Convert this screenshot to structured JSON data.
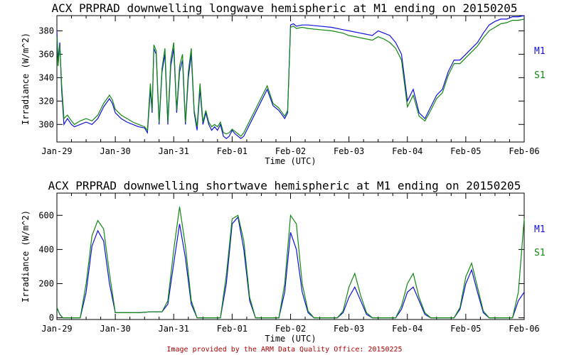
{
  "footer": "Image provided by the ARM Data Quality Office: 20150225",
  "colors": {
    "M1": "#1010e0",
    "S1": "#118811",
    "axis": "#000000",
    "footer": "#b00000"
  },
  "chart_data": [
    {
      "type": "line",
      "title": "ACX PRPRAD downwelling longwave hemispheric at M1 ending on 20150205",
      "xlabel": "Time (UTC)",
      "ylabel": "Irradiance (W/m^2)",
      "xlim": [
        "2015-01-29",
        "2015-02-06"
      ],
      "ylim": [
        285,
        393
      ],
      "x_ticks": [
        "Jan-29",
        "Jan-30",
        "Jan-31",
        "Feb-01",
        "Feb-02",
        "Feb-03",
        "Feb-04",
        "Feb-05",
        "Feb-06"
      ],
      "y_ticks": [
        300,
        320,
        340,
        360,
        380
      ],
      "legend": [
        "M1",
        "S1"
      ],
      "legend_position": "right",
      "grid": false,
      "series": [
        {
          "name": "M1",
          "x_days": [
            0,
            0.02,
            0.05,
            0.08,
            0.12,
            0.18,
            0.25,
            0.3,
            0.4,
            0.5,
            0.6,
            0.7,
            0.8,
            0.9,
            0.95,
            1.0,
            1.1,
            1.2,
            1.3,
            1.4,
            1.5,
            1.55,
            1.6,
            1.63,
            1.66,
            1.7,
            1.75,
            1.8,
            1.85,
            1.9,
            1.95,
            2.0,
            2.05,
            2.1,
            2.15,
            2.2,
            2.25,
            2.3,
            2.35,
            2.4,
            2.45,
            2.5,
            2.55,
            2.6,
            2.65,
            2.7,
            2.75,
            2.8,
            2.85,
            2.9,
            2.95,
            3.0,
            3.05,
            3.1,
            3.15,
            3.2,
            3.3,
            3.4,
            3.5,
            3.6,
            3.7,
            3.8,
            3.9,
            3.95,
            4.0,
            4.05,
            4.1,
            4.2,
            4.3,
            4.5,
            4.7,
            4.9,
            5.0,
            5.2,
            5.4,
            5.5,
            5.6,
            5.7,
            5.8,
            5.9,
            6.0,
            6.1,
            6.2,
            6.3,
            6.4,
            6.5,
            6.6,
            6.7,
            6.8,
            6.9,
            7.0,
            7.1,
            7.2,
            7.3,
            7.4,
            7.5,
            7.6,
            7.7,
            7.8,
            7.9,
            8.0
          ],
          "values": [
            380,
            355,
            370,
            330,
            300,
            305,
            300,
            298,
            300,
            302,
            300,
            305,
            315,
            322,
            318,
            310,
            305,
            302,
            300,
            298,
            297,
            293,
            330,
            310,
            365,
            360,
            300,
            345,
            360,
            300,
            350,
            365,
            310,
            345,
            355,
            300,
            340,
            360,
            310,
            295,
            330,
            300,
            310,
            300,
            295,
            298,
            295,
            300,
            290,
            288,
            290,
            295,
            292,
            290,
            288,
            290,
            300,
            310,
            320,
            330,
            316,
            312,
            305,
            310,
            385,
            386,
            384,
            385,
            385,
            384,
            383,
            381,
            380,
            378,
            376,
            380,
            378,
            376,
            370,
            360,
            320,
            330,
            310,
            305,
            315,
            325,
            330,
            345,
            355,
            355,
            360,
            365,
            370,
            378,
            385,
            388,
            390,
            390,
            392,
            392,
            393
          ]
        },
        {
          "name": "S1",
          "x_days": [
            0,
            0.02,
            0.05,
            0.08,
            0.12,
            0.18,
            0.25,
            0.3,
            0.4,
            0.5,
            0.6,
            0.7,
            0.8,
            0.9,
            0.95,
            1.0,
            1.1,
            1.2,
            1.3,
            1.4,
            1.5,
            1.55,
            1.6,
            1.63,
            1.66,
            1.7,
            1.75,
            1.8,
            1.85,
            1.9,
            1.95,
            2.0,
            2.05,
            2.1,
            2.15,
            2.2,
            2.25,
            2.3,
            2.35,
            2.4,
            2.45,
            2.5,
            2.55,
            2.6,
            2.65,
            2.7,
            2.75,
            2.8,
            2.85,
            2.9,
            2.95,
            3.0,
            3.05,
            3.1,
            3.15,
            3.2,
            3.3,
            3.4,
            3.5,
            3.6,
            3.7,
            3.8,
            3.9,
            3.95,
            4.0,
            4.05,
            4.1,
            4.2,
            4.3,
            4.5,
            4.7,
            4.9,
            5.0,
            5.2,
            5.4,
            5.5,
            5.6,
            5.7,
            5.8,
            5.9,
            6.0,
            6.1,
            6.2,
            6.3,
            6.4,
            6.5,
            6.6,
            6.7,
            6.8,
            6.9,
            7.0,
            7.1,
            7.2,
            7.3,
            7.4,
            7.5,
            7.6,
            7.7,
            7.8,
            7.9,
            8.0
          ],
          "values": [
            375,
            350,
            368,
            335,
            305,
            308,
            303,
            300,
            303,
            305,
            303,
            308,
            318,
            325,
            321,
            313,
            308,
            305,
            302,
            300,
            298,
            295,
            335,
            312,
            368,
            363,
            302,
            348,
            365,
            302,
            355,
            370,
            312,
            350,
            360,
            302,
            345,
            365,
            312,
            298,
            335,
            302,
            312,
            302,
            298,
            300,
            298,
            302,
            293,
            292,
            293,
            296,
            294,
            292,
            290,
            293,
            303,
            313,
            323,
            333,
            318,
            314,
            307,
            312,
            383,
            384,
            382,
            383,
            382,
            381,
            380,
            378,
            376,
            374,
            372,
            375,
            373,
            370,
            365,
            355,
            315,
            325,
            307,
            303,
            312,
            322,
            327,
            342,
            352,
            352,
            357,
            362,
            367,
            374,
            380,
            383,
            386,
            387,
            389,
            389,
            390
          ]
        }
      ]
    },
    {
      "type": "line",
      "title": "ACX PRPRAD downwelling shortwave hemispheric at M1 ending on 20150205",
      "xlabel": "Time (UTC)",
      "ylabel": "Irradiance (W/m^2)",
      "xlim": [
        "2015-01-29",
        "2015-02-06"
      ],
      "ylim": [
        -10,
        730
      ],
      "x_ticks": [
        "Jan-29",
        "Jan-30",
        "Jan-31",
        "Feb-01",
        "Feb-02",
        "Feb-03",
        "Feb-04",
        "Feb-05",
        "Feb-06"
      ],
      "y_ticks": [
        0,
        200,
        400,
        600
      ],
      "legend": [
        "M1",
        "S1"
      ],
      "legend_position": "right",
      "grid": false,
      "series": [
        {
          "name": "M1",
          "x_days": [
            0,
            0.05,
            0.1,
            0.4,
            0.5,
            0.6,
            0.7,
            0.8,
            0.9,
            1.0,
            1.2,
            1.4,
            1.6,
            1.8,
            1.9,
            2.0,
            2.1,
            2.2,
            2.3,
            2.4,
            2.5,
            2.8,
            2.9,
            3.0,
            3.1,
            3.2,
            3.3,
            3.4,
            3.5,
            3.8,
            3.9,
            4.0,
            4.1,
            4.2,
            4.3,
            4.4,
            4.5,
            4.8,
            4.9,
            5.0,
            5.1,
            5.2,
            5.3,
            5.4,
            5.5,
            5.8,
            5.9,
            6.0,
            6.1,
            6.2,
            6.3,
            6.4,
            6.5,
            6.8,
            6.9,
            7.0,
            7.1,
            7.2,
            7.3,
            7.4,
            7.5,
            7.8,
            7.9,
            8.0
          ],
          "values": [
            60,
            20,
            0,
            0,
            150,
            420,
            510,
            450,
            200,
            30,
            30,
            30,
            35,
            35,
            80,
            320,
            550,
            350,
            80,
            0,
            0,
            0,
            200,
            550,
            590,
            400,
            100,
            0,
            0,
            0,
            150,
            500,
            400,
            150,
            30,
            0,
            0,
            0,
            30,
            120,
            180,
            100,
            20,
            0,
            0,
            0,
            50,
            150,
            180,
            100,
            20,
            0,
            0,
            0,
            50,
            200,
            280,
            150,
            30,
            0,
            0,
            0,
            100,
            150
          ]
        },
        {
          "name": "S1",
          "x_days": [
            0,
            0.05,
            0.1,
            0.4,
            0.5,
            0.6,
            0.7,
            0.8,
            0.9,
            1.0,
            1.2,
            1.4,
            1.6,
            1.8,
            1.9,
            2.0,
            2.1,
            2.2,
            2.3,
            2.4,
            2.5,
            2.8,
            2.9,
            3.0,
            3.1,
            3.2,
            3.3,
            3.4,
            3.5,
            3.8,
            3.9,
            4.0,
            4.1,
            4.2,
            4.3,
            4.4,
            4.5,
            4.8,
            4.9,
            5.0,
            5.1,
            5.2,
            5.3,
            5.4,
            5.5,
            5.8,
            5.9,
            6.0,
            6.1,
            6.2,
            6.3,
            6.4,
            6.5,
            6.8,
            6.9,
            7.0,
            7.1,
            7.2,
            7.3,
            7.4,
            7.5,
            7.8,
            7.9,
            8.0
          ],
          "values": [
            60,
            20,
            0,
            0,
            200,
            480,
            570,
            520,
            260,
            30,
            30,
            30,
            35,
            35,
            100,
            400,
            650,
            420,
            100,
            0,
            0,
            0,
            250,
            580,
            600,
            450,
            120,
            0,
            0,
            0,
            200,
            600,
            550,
            200,
            40,
            0,
            0,
            0,
            40,
            180,
            260,
            130,
            30,
            0,
            0,
            0,
            70,
            200,
            260,
            120,
            30,
            0,
            0,
            0,
            60,
            240,
            320,
            180,
            40,
            0,
            0,
            0,
            150,
            580
          ]
        }
      ]
    }
  ]
}
